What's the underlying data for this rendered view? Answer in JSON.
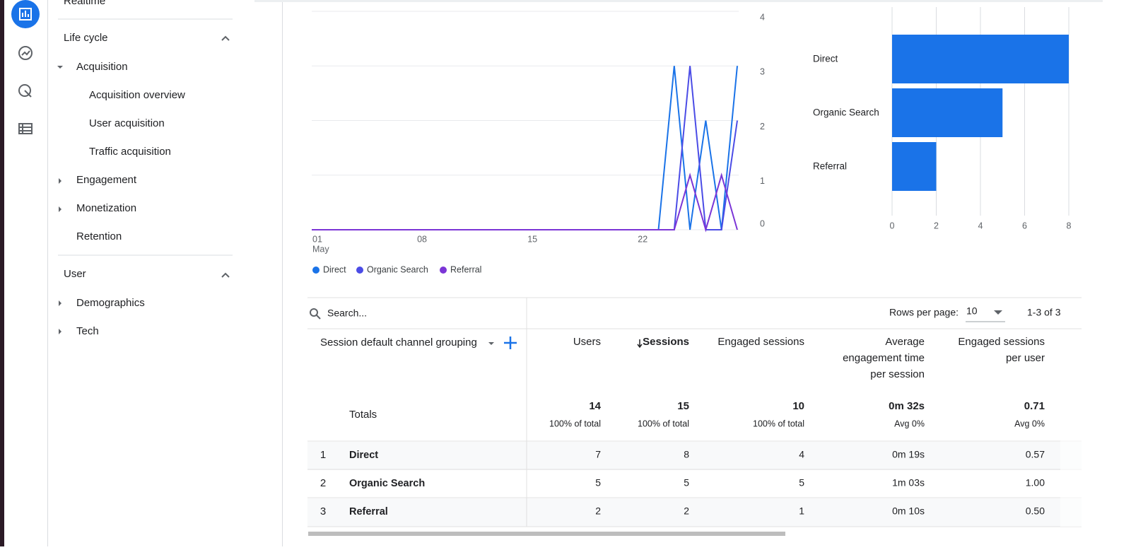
{
  "sidebar": {
    "realtime": "Realtime",
    "sections": [
      {
        "title": "Life cycle",
        "items": [
          {
            "label": "Acquisition",
            "children": [
              "Acquisition overview",
              "User acquisition",
              "Traffic acquisition"
            ]
          },
          {
            "label": "Engagement"
          },
          {
            "label": "Monetization"
          },
          {
            "label": "Retention"
          }
        ]
      },
      {
        "title": "User",
        "items": [
          {
            "label": "Demographics"
          },
          {
            "label": "Tech"
          }
        ]
      }
    ]
  },
  "chart_data": [
    {
      "type": "line",
      "categories": [
        "01",
        null,
        null,
        null,
        null,
        null,
        null,
        "08",
        null,
        null,
        null,
        null,
        null,
        null,
        "15",
        null,
        null,
        null,
        null,
        null,
        null,
        "22",
        null,
        null,
        null,
        null,
        null,
        null
      ],
      "x_month": "May",
      "series": [
        {
          "name": "Direct",
          "color": "#1a73e8",
          "values": [
            0,
            0,
            0,
            0,
            0,
            0,
            0,
            0,
            0,
            0,
            0,
            0,
            0,
            0,
            0,
            0,
            0,
            0,
            0,
            0,
            0,
            0,
            0,
            3,
            0,
            2,
            0,
            3
          ]
        },
        {
          "name": "Organic Search",
          "color": "#4b4ce6",
          "values": [
            0,
            0,
            0,
            0,
            0,
            0,
            0,
            0,
            0,
            0,
            0,
            0,
            0,
            0,
            0,
            0,
            0,
            0,
            0,
            0,
            0,
            0,
            0,
            0,
            3,
            0,
            0,
            2
          ]
        },
        {
          "name": "Referral",
          "color": "#7b35d6",
          "values": [
            0,
            0,
            0,
            0,
            0,
            0,
            0,
            0,
            0,
            0,
            0,
            0,
            0,
            0,
            0,
            0,
            0,
            0,
            0,
            0,
            0,
            0,
            0,
            0,
            1,
            0,
            1,
            0
          ]
        }
      ],
      "ylim": [
        0,
        4
      ],
      "yticks": [
        0,
        1,
        2,
        3,
        4
      ],
      "grid": true
    },
    {
      "type": "bar",
      "orientation": "horizontal",
      "categories": [
        "Direct",
        "Organic Search",
        "Referral"
      ],
      "values": [
        8,
        5,
        2
      ],
      "color": "#1a73e8",
      "xlim": [
        0,
        8
      ],
      "xticks": [
        0,
        2,
        4,
        6,
        8
      ],
      "grid": true
    }
  ],
  "table": {
    "search_placeholder": "Search...",
    "rows_per_page_label": "Rows per page:",
    "rows_per_page": "10",
    "pagination": "1-3 of 3",
    "columns": [
      "Session default channel grouping",
      "Users",
      "Sessions",
      "Engaged sessions",
      [
        "Average",
        "engagement time",
        "per session"
      ],
      [
        "Engaged sessions",
        "per user"
      ]
    ],
    "totals": {
      "label": "Totals",
      "values": [
        "14",
        "15",
        "10",
        "0m 32s",
        "0.71"
      ],
      "notes": [
        "100% of total",
        "100% of total",
        "100% of total",
        "Avg 0%",
        "Avg 0%"
      ]
    },
    "rows": [
      [
        "1",
        "Direct",
        "7",
        "8",
        "4",
        "0m 19s",
        "0.57"
      ],
      [
        "2",
        "Organic Search",
        "5",
        "5",
        "5",
        "1m 03s",
        "1.00"
      ],
      [
        "3",
        "Referral",
        "2",
        "2",
        "1",
        "0m 10s",
        "0.50"
      ]
    ]
  }
}
